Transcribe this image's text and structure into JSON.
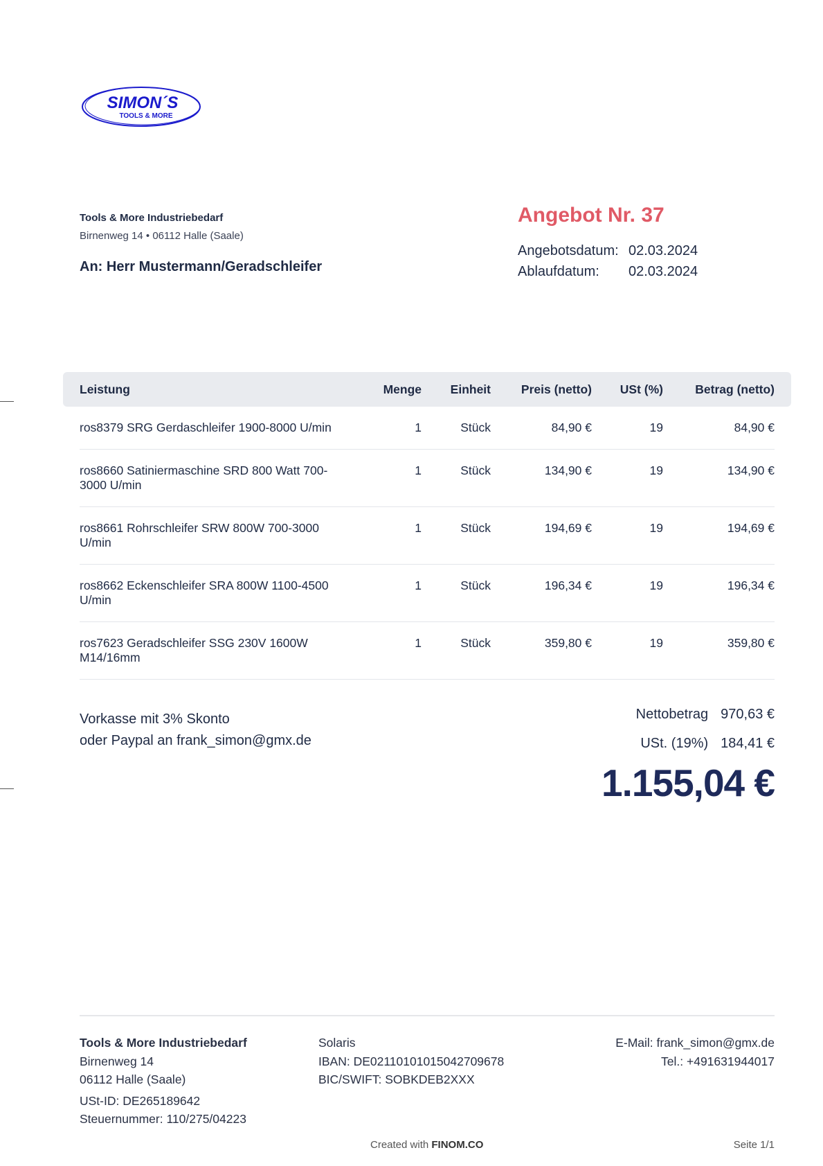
{
  "logo": {
    "line1": "SIMON´S",
    "line2": "TOOLS & MORE",
    "color": "#1a1acc"
  },
  "sender": {
    "name": "Tools & More Industriebedarf",
    "street": "Birnenweg 14",
    "separator": "•",
    "city": "06112 Halle (Saale)"
  },
  "recipient": "An: Herr Mustermann/Geradschleifer",
  "offer": {
    "title": "Angebot Nr. 37",
    "date_label": "Angebotsdatum:",
    "date": "02.03.2024",
    "expiry_label": "Ablaufdatum:",
    "expiry": "02.03.2024",
    "accent": "#e05a66"
  },
  "table": {
    "headers": [
      "Leistung",
      "Menge",
      "Einheit",
      "Preis (netto)",
      "USt (%)",
      "Betrag (netto)"
    ],
    "rows": [
      [
        "ros8379 SRG Gerdaschleifer 1900-8000 U/min",
        "1",
        "Stück",
        "84,90 €",
        "19",
        "84,90 €"
      ],
      [
        "ros8660 Satiniermaschine SRD 800 Watt 700-3000 U/min",
        "1",
        "Stück",
        "134,90 €",
        "19",
        "134,90 €"
      ],
      [
        "ros8661 Rohrschleifer SRW 800W 700-3000 U/min",
        "1",
        "Stück",
        "194,69 €",
        "19",
        "194,69 €"
      ],
      [
        "ros8662 Eckenschleifer SRA 800W 1100-4500 U/min",
        "1",
        "Stück",
        "196,34 €",
        "19",
        "196,34 €"
      ],
      [
        "ros7623 Geradschleifer SSG 230V 1600W M14/16mm",
        "1",
        "Stück",
        "359,80 €",
        "19",
        "359,80 €"
      ]
    ]
  },
  "payment": {
    "line1": "Vorkasse mit 3% Skonto",
    "line2": "oder Paypal an frank_simon@gmx.de"
  },
  "totals": {
    "net_label": "Nettobetrag",
    "net": "970,63 €",
    "vat_label": "USt. (19%)",
    "vat": "184,41 €",
    "total": "1.155,04 €"
  },
  "footer": {
    "company": "Tools & More Industriebedarf",
    "street": "Birnenweg 14",
    "city": "06112 Halle (Saale)",
    "vat_id": "USt-ID: DE265189642",
    "tax_no": "Steuernummer: 110/275/04223",
    "bank": "Solaris",
    "iban": "IBAN: DE02110101015042709678",
    "bic": "BIC/SWIFT: SOBKDEB2XXX",
    "email": "E-Mail: frank_simon@gmx.de",
    "phone": "Tel.: +491631944017",
    "created_prefix": "Created with",
    "created_brand": "FINOM.CO",
    "page": "Seite 1/1"
  }
}
